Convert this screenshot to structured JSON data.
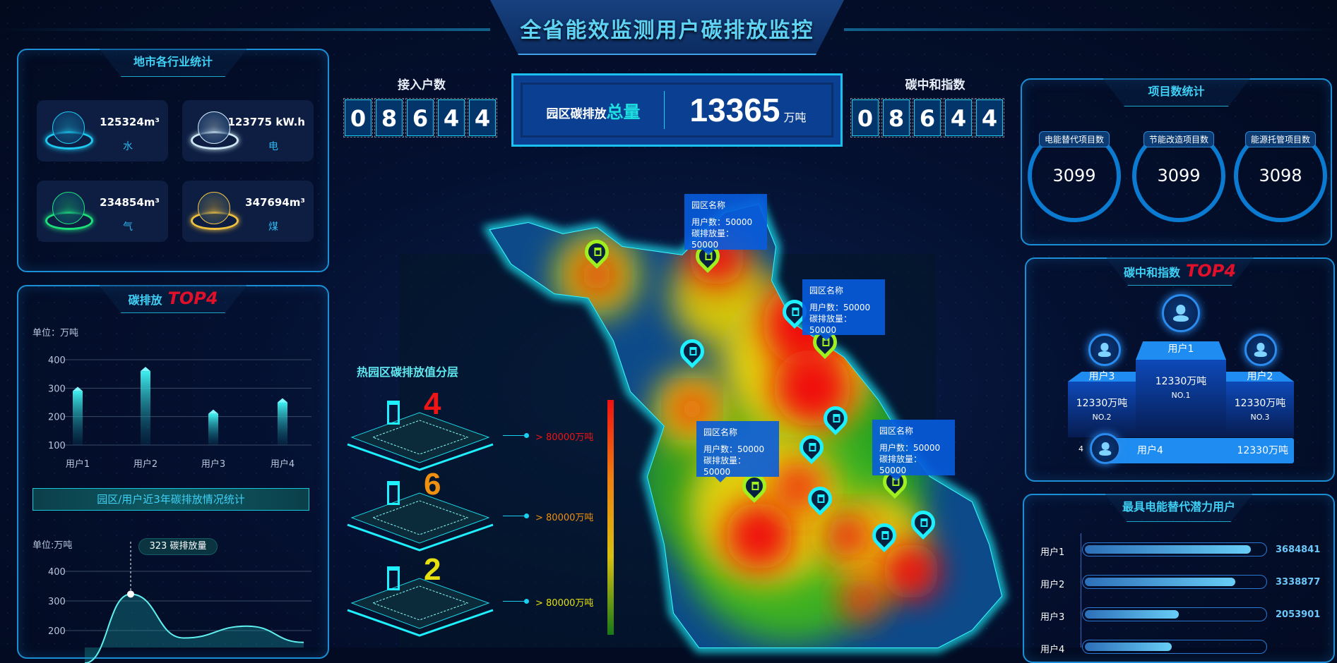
{
  "header": {
    "title": "全省能效监测用户碳排放监控"
  },
  "industry": {
    "title": "地市各行业统计",
    "cards": [
      {
        "value": "125324m³",
        "label": "水",
        "icon": "water-drop-icon",
        "color": "#1ec8f0"
      },
      {
        "value": "123775 kW.h",
        "label": "电",
        "icon": "lightning-icon",
        "color": "#cfe8f5"
      },
      {
        "value": "234854m³",
        "label": "气",
        "icon": "gas-icon",
        "color": "#1de07a"
      },
      {
        "value": "347694m³",
        "label": "煤",
        "icon": "flame-icon",
        "color": "#f0c040"
      }
    ]
  },
  "carbon_top": {
    "title": "碳排放",
    "title_accent": "TOP4",
    "unit": "单位：万吨",
    "section_title": "园区/用户近3年碳排放情况统计",
    "line_unit": "单位:万吨",
    "tooltip_value": "323",
    "tooltip_label": "碳排放量"
  },
  "chart_data": [
    {
      "type": "bar",
      "categories": [
        "用户1",
        "用户2",
        "用户3",
        "用户4"
      ],
      "values": [
        290,
        360,
        210,
        250
      ],
      "ylim": [
        100,
        400
      ],
      "yticks": [
        100,
        200,
        300,
        400
      ],
      "ylabel": "单位：万吨",
      "grid": true
    },
    {
      "type": "area",
      "values": [
        90,
        323,
        175,
        215,
        160
      ],
      "highlight": {
        "value": 323,
        "label": "碳排放量"
      },
      "ylim": [
        200,
        400
      ],
      "yticks": [
        200,
        300,
        400
      ],
      "ylabel": "单位:万吨",
      "grid": true
    }
  ],
  "access": {
    "label": "接入户数",
    "digits": [
      "0",
      "8",
      "6",
      "4",
      "4"
    ]
  },
  "total": {
    "label": "园区碳排放",
    "label_accent": "总量",
    "value": "13365",
    "unit": "万吨"
  },
  "neutral": {
    "label": "碳中和指数",
    "digits": [
      "0",
      "8",
      "6",
      "4",
      "4"
    ]
  },
  "map": {
    "layers_title": "热园区碳排放值分层",
    "layers": [
      {
        "count": "4",
        "color": "#f01515",
        "legend": "> 80000万吨"
      },
      {
        "count": "6",
        "color": "#f09010",
        "legend": "> 80000万吨"
      },
      {
        "count": "2",
        "color": "#e6e010",
        "legend": "> 80000万吨"
      }
    ],
    "tooltips": [
      {
        "name": "园区名称",
        "users": "用户数：50000",
        "emission": "碳排放量：50000"
      },
      {
        "name": "园区名称",
        "users": "用户数：50000",
        "emission": "碳排放量：50000"
      },
      {
        "name": "园区名称",
        "users": "用户数：50000",
        "emission": "碳排放量：50000"
      },
      {
        "name": "园区名称",
        "users": "用户数：50000",
        "emission": "碳排放量：50000"
      }
    ],
    "pin_colors": {
      "cyan": "#1ef0ff",
      "green": "#a0f020"
    }
  },
  "projects": {
    "title": "项目数统计",
    "items": [
      {
        "label": "电能替代项目数",
        "value": "3099"
      },
      {
        "label": "节能改造项目数",
        "value": "3099"
      },
      {
        "label": "能源托管项目数",
        "value": "3098"
      }
    ]
  },
  "neutral_top": {
    "title": "碳中和指数",
    "title_accent": "TOP4",
    "first": {
      "name": "用户1",
      "value": "12330万吨",
      "rank": "NO.1"
    },
    "second": {
      "name": "用户3",
      "value": "12330万吨",
      "rank": "NO.2"
    },
    "third": {
      "name": "用户2",
      "value": "12330万吨",
      "rank": "NO.3"
    },
    "fourth": {
      "rank": "4",
      "name": "用户4",
      "value": "12330万吨"
    }
  },
  "potential": {
    "title": "最具电能替代潜力用户",
    "rows": [
      {
        "label": "用户1",
        "value": "3684841",
        "pct": 94
      },
      {
        "label": "用户2",
        "value": "3338877",
        "pct": 85
      },
      {
        "label": "用户3",
        "value": "2053901",
        "pct": 53
      },
      {
        "label": "用户4",
        "pct": 49
      }
    ]
  }
}
